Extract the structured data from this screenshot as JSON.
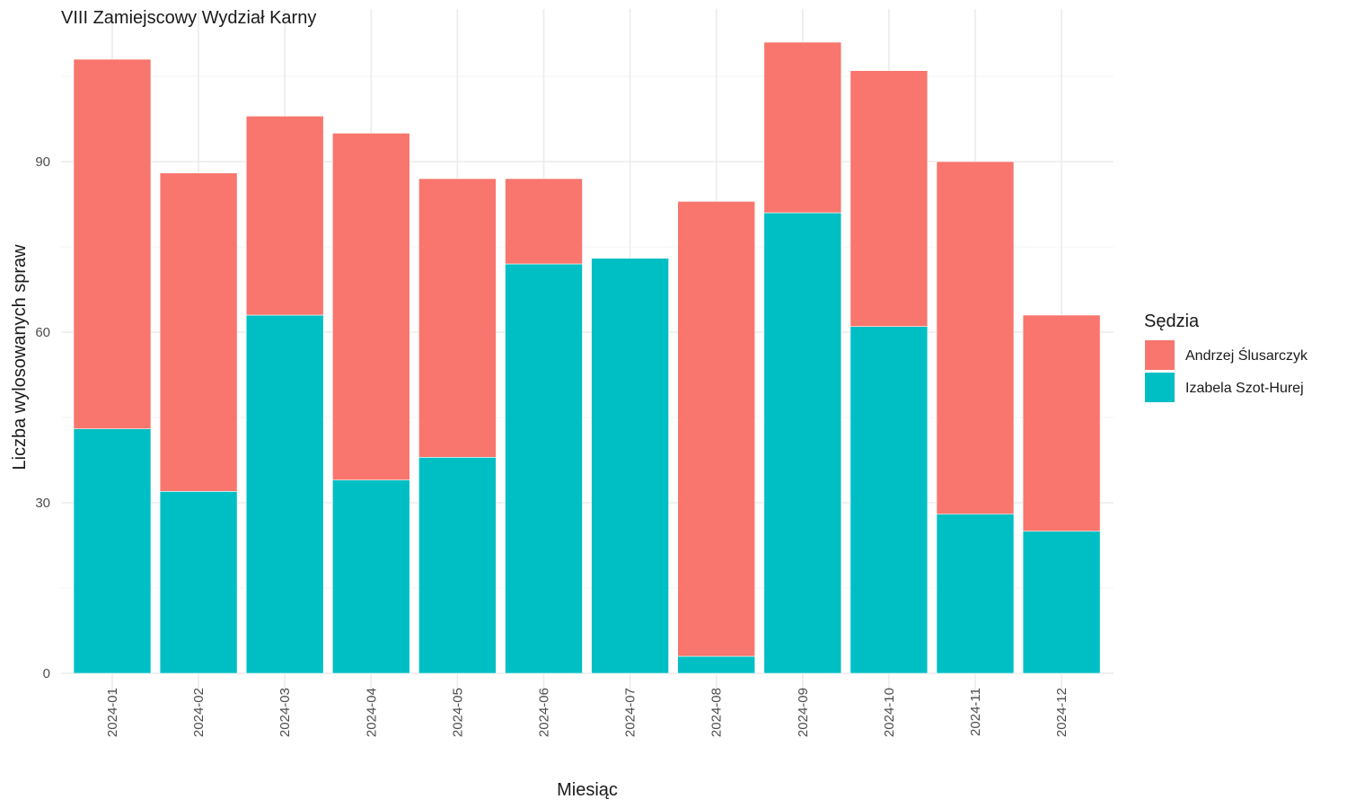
{
  "chart_data": {
    "type": "bar",
    "stacked": true,
    "title": "VIII Zamiejscowy Wydział Karny",
    "xlabel": "Miesiąc",
    "ylabel": "Liczba wylosowanych spraw",
    "ylim": [
      0,
      116
    ],
    "yticks": [
      0,
      30,
      60,
      90
    ],
    "grid": true,
    "legend": {
      "title": "Sędzia",
      "position": "right"
    },
    "categories": [
      "2024-01",
      "2024-02",
      "2024-03",
      "2024-04",
      "2024-05",
      "2024-06",
      "2024-07",
      "2024-08",
      "2024-09",
      "2024-10",
      "2024-11",
      "2024-12"
    ],
    "series": [
      {
        "name": "Izabela Szot-Hurej",
        "color": "#00BFC4",
        "values": [
          43,
          32,
          63,
          34,
          38,
          72,
          73,
          3,
          81,
          61,
          28,
          25
        ]
      },
      {
        "name": "Andrzej Ślusarczyk",
        "color": "#F8766D",
        "values": [
          65,
          56,
          35,
          61,
          49,
          15,
          0,
          80,
          30,
          45,
          62,
          38
        ]
      }
    ],
    "legend_order": [
      "Andrzej Ślusarczyk",
      "Izabela Szot-Hurej"
    ]
  }
}
